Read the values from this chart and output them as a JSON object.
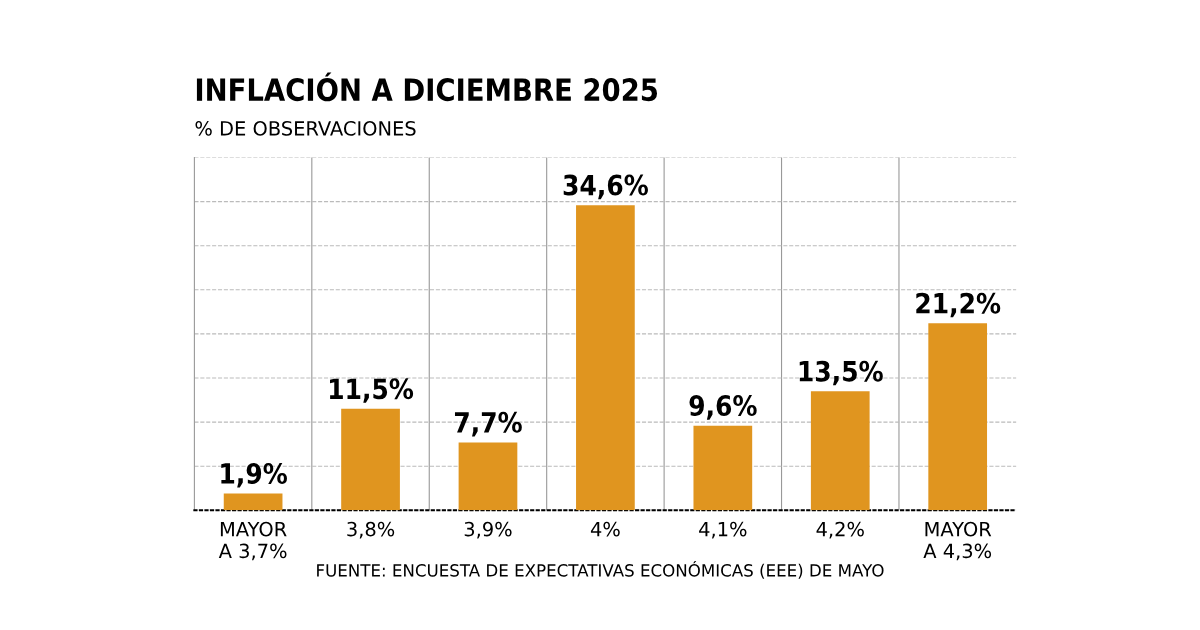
{
  "chart_data": {
    "type": "bar",
    "title": "INFLACIÓN A DICIEMBRE 2025",
    "subtitle": "% DE OBSERVACIONES",
    "categories": [
      "MAYOR\nA 3,7%",
      "3,8%",
      "3,9%",
      "4%",
      "4,1%",
      "4,2%",
      "MAYOR\nA 4,3%"
    ],
    "values": [
      1.9,
      11.5,
      7.7,
      34.6,
      9.6,
      13.5,
      21.2
    ],
    "value_labels": [
      "1,9%",
      "11,5%",
      "7,7%",
      "34,6%",
      "9,6%",
      "13,5%",
      "21,2%"
    ],
    "color": "#e0951f",
    "ylim": [
      0,
      40
    ],
    "yticks": [
      {
        "value": 0,
        "label": null
      },
      {
        "value": 5,
        "label": null
      },
      {
        "value": 10,
        "label": null
      },
      {
        "value": 15,
        "label": null
      },
      {
        "value": 20,
        "label": null
      },
      {
        "value": 25,
        "label": null
      },
      {
        "value": 30,
        "label": null
      },
      {
        "value": 35,
        "label": null
      },
      {
        "value": 40,
        "label": null
      }
    ],
    "tick_labels": "x",
    "grid": true,
    "annotations": [
      "FUENTE: ENCUESTA DE EXPECTATIVAS ECONÓMICAS (EEE) DE MAYO"
    ]
  }
}
